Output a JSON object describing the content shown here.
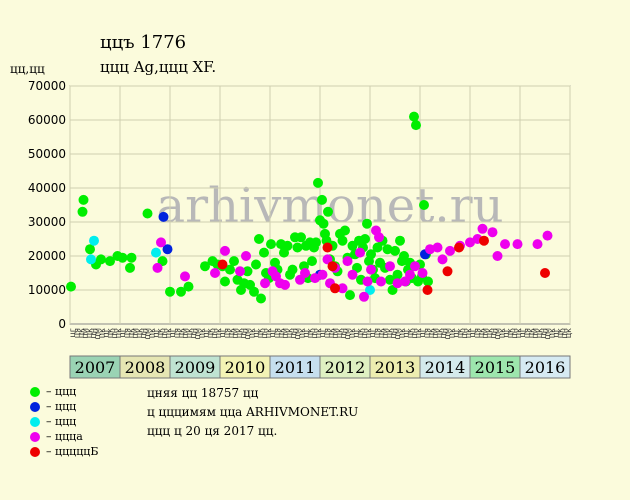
{
  "header": {
    "title": "ццъ 1776",
    "subtitle": "ццц Ag,ццц XF.",
    "ylabel": "цц,цц"
  },
  "watermark": "arhivmonet.ru",
  "notes": [
    "цняя цц 18757 цц",
    "ц цццимям цца ARHIVMONET.RU",
    "ццц ц 20 ця 2017 цц."
  ],
  "legend": [
    {
      "label": "– ццц",
      "color": "#00ee00"
    },
    {
      "label": "– ццц",
      "color": "#0022dd"
    },
    {
      "label": "– ццц",
      "color": "#00eeee"
    },
    {
      "label": "– ццца",
      "color": "#ee00ee"
    },
    {
      "label": "– цццццБ",
      "color": "#ee0000"
    }
  ],
  "chart_data": {
    "type": "scatter",
    "ylim": [
      0,
      70000
    ],
    "yticks": [
      0,
      10000,
      20000,
      30000,
      40000,
      50000,
      60000,
      70000
    ],
    "xlim": [
      2007,
      2017
    ],
    "years": [
      {
        "label": "2007",
        "color": "#9ad3b4"
      },
      {
        "label": "2008",
        "color": "#e6e6b3"
      },
      {
        "label": "2009",
        "color": "#bfe3d2"
      },
      {
        "label": "2010",
        "color": "#f3f3b5"
      },
      {
        "label": "2011",
        "color": "#c6dfee"
      },
      {
        "label": "2012",
        "color": "#dff0c2"
      },
      {
        "label": "2013",
        "color": "#ededb0"
      },
      {
        "label": "2014",
        "color": "#d4eaec"
      },
      {
        "label": "2015",
        "color": "#9de6ad"
      },
      {
        "label": "2016",
        "color": "#d6eaf2"
      }
    ],
    "month_ticks": [
      "цг",
      "ця",
      "цк",
      "ци",
      "цк",
      "цн",
      "цм",
      "цк",
      "цг",
      "цк",
      "цн",
      "цк"
    ],
    "series": [
      {
        "name": "– ццц",
        "color": "#00ee00",
        "points": [
          [
            2007.02,
            11000
          ],
          [
            2007.25,
            33000
          ],
          [
            2007.27,
            36500
          ],
          [
            2007.4,
            22000
          ],
          [
            2007.52,
            17500
          ],
          [
            2007.62,
            19000
          ],
          [
            2007.8,
            18500
          ],
          [
            2007.95,
            20000
          ],
          [
            2008.05,
            19500
          ],
          [
            2008.2,
            16500
          ],
          [
            2008.23,
            19500
          ],
          [
            2008.55,
            32500
          ],
          [
            2008.85,
            18500
          ],
          [
            2009.0,
            9500
          ],
          [
            2009.22,
            9500
          ],
          [
            2009.37,
            11000
          ],
          [
            2009.7,
            17000
          ],
          [
            2009.85,
            18500
          ],
          [
            2009.95,
            17500
          ],
          [
            2010.05,
            17000
          ],
          [
            2010.1,
            12500
          ],
          [
            2010.2,
            16000
          ],
          [
            2010.28,
            18500
          ],
          [
            2010.35,
            13000
          ],
          [
            2010.42,
            10000
          ],
          [
            2010.48,
            12000
          ],
          [
            2010.55,
            15500
          ],
          [
            2010.6,
            11500
          ],
          [
            2010.68,
            9500
          ],
          [
            2010.72,
            17500
          ],
          [
            2010.78,
            25000
          ],
          [
            2010.82,
            7500
          ],
          [
            2010.88,
            21000
          ],
          [
            2010.92,
            15000
          ],
          [
            2010.98,
            13500
          ],
          [
            2011.02,
            23500
          ],
          [
            2011.1,
            18000
          ],
          [
            2011.15,
            16000
          ],
          [
            2011.22,
            23500
          ],
          [
            2011.28,
            21000
          ],
          [
            2011.35,
            23000
          ],
          [
            2011.4,
            14500
          ],
          [
            2011.45,
            16000
          ],
          [
            2011.5,
            25500
          ],
          [
            2011.55,
            22500
          ],
          [
            2011.62,
            25500
          ],
          [
            2011.68,
            17000
          ],
          [
            2011.72,
            23000
          ],
          [
            2011.76,
            13500
          ],
          [
            2011.8,
            24000
          ],
          [
            2011.84,
            18500
          ],
          [
            2011.88,
            22500
          ],
          [
            2011.92,
            24000
          ],
          [
            2011.96,
            41500
          ],
          [
            2012.0,
            30500
          ],
          [
            2012.04,
            36500
          ],
          [
            2012.07,
            29500
          ],
          [
            2012.1,
            26500
          ],
          [
            2012.13,
            24500
          ],
          [
            2012.16,
            33000
          ],
          [
            2012.2,
            19000
          ],
          [
            2012.25,
            23000
          ],
          [
            2012.3,
            17000
          ],
          [
            2012.35,
            15500
          ],
          [
            2012.4,
            26500
          ],
          [
            2012.45,
            24500
          ],
          [
            2012.5,
            27500
          ],
          [
            2012.55,
            19500
          ],
          [
            2012.6,
            8500
          ],
          [
            2012.65,
            23000
          ],
          [
            2012.7,
            20500
          ],
          [
            2012.74,
            16500
          ],
          [
            2012.78,
            24500
          ],
          [
            2012.82,
            13000
          ],
          [
            2012.86,
            22500
          ],
          [
            2012.9,
            25000
          ],
          [
            2012.94,
            29500
          ],
          [
            2012.98,
            18500
          ],
          [
            2013.02,
            20500
          ],
          [
            2013.06,
            16000
          ],
          [
            2013.1,
            13500
          ],
          [
            2013.15,
            22500
          ],
          [
            2013.2,
            18000
          ],
          [
            2013.25,
            24500
          ],
          [
            2013.3,
            16500
          ],
          [
            2013.35,
            22000
          ],
          [
            2013.4,
            13000
          ],
          [
            2013.45,
            10000
          ],
          [
            2013.5,
            21500
          ],
          [
            2013.55,
            14500
          ],
          [
            2013.6,
            24500
          ],
          [
            2013.64,
            18500
          ],
          [
            2013.68,
            20000
          ],
          [
            2013.72,
            12500
          ],
          [
            2013.76,
            16000
          ],
          [
            2013.8,
            18000
          ],
          [
            2013.84,
            13500
          ],
          [
            2013.88,
            61000
          ],
          [
            2013.92,
            58500
          ],
          [
            2013.96,
            12500
          ],
          [
            2014.0,
            17500
          ],
          [
            2014.04,
            14000
          ],
          [
            2014.08,
            35000
          ],
          [
            2014.12,
            20500
          ],
          [
            2014.16,
            12500
          ]
        ]
      },
      {
        "name": "– ццц",
        "color": "#0022dd",
        "points": [
          [
            2008.87,
            31500
          ],
          [
            2008.95,
            22000
          ],
          [
            2012.0,
            14500
          ],
          [
            2014.1,
            20500
          ]
        ]
      },
      {
        "name": "– ццц",
        "color": "#00eeee",
        "points": [
          [
            2007.42,
            19000
          ],
          [
            2007.48,
            24500
          ],
          [
            2008.72,
            21000
          ],
          [
            2013.0,
            10000
          ]
        ]
      },
      {
        "name": "– ццца",
        "color": "#ee00ee",
        "points": [
          [
            2008.75,
            16500
          ],
          [
            2008.82,
            24000
          ],
          [
            2009.3,
            14000
          ],
          [
            2009.9,
            15000
          ],
          [
            2010.1,
            21500
          ],
          [
            2010.4,
            15500
          ],
          [
            2010.52,
            20000
          ],
          [
            2010.9,
            12000
          ],
          [
            2011.05,
            15500
          ],
          [
            2011.12,
            14000
          ],
          [
            2011.2,
            12000
          ],
          [
            2011.3,
            11500
          ],
          [
            2011.6,
            13000
          ],
          [
            2011.7,
            15000
          ],
          [
            2011.9,
            13500
          ],
          [
            2012.05,
            14500
          ],
          [
            2012.15,
            19000
          ],
          [
            2012.2,
            12000
          ],
          [
            2012.3,
            16500
          ],
          [
            2012.45,
            10500
          ],
          [
            2012.55,
            18500
          ],
          [
            2012.65,
            14500
          ],
          [
            2012.8,
            21000
          ],
          [
            2012.88,
            8000
          ],
          [
            2012.95,
            12500
          ],
          [
            2013.02,
            16000
          ],
          [
            2013.12,
            27500
          ],
          [
            2013.18,
            25500
          ],
          [
            2013.22,
            12500
          ],
          [
            2013.4,
            17000
          ],
          [
            2013.55,
            12000
          ],
          [
            2013.7,
            12500
          ],
          [
            2013.8,
            14500
          ],
          [
            2013.9,
            17000
          ],
          [
            2014.05,
            15000
          ],
          [
            2014.2,
            22000
          ],
          [
            2014.35,
            22500
          ],
          [
            2014.45,
            19000
          ],
          [
            2014.6,
            21500
          ],
          [
            2014.8,
            23000
          ],
          [
            2015.0,
            24000
          ],
          [
            2015.15,
            25000
          ],
          [
            2015.25,
            28000
          ],
          [
            2015.45,
            27000
          ],
          [
            2015.55,
            20000
          ],
          [
            2015.7,
            23500
          ],
          [
            2015.95,
            23500
          ],
          [
            2016.35,
            23500
          ],
          [
            2016.55,
            26000
          ]
        ]
      },
      {
        "name": "– цццццБ",
        "color": "#ee0000",
        "points": [
          [
            2010.05,
            17500
          ],
          [
            2012.15,
            22500
          ],
          [
            2012.25,
            17000
          ],
          [
            2012.3,
            10500
          ],
          [
            2014.15,
            10000
          ],
          [
            2014.55,
            15500
          ],
          [
            2014.78,
            22500
          ],
          [
            2015.28,
            24500
          ],
          [
            2016.5,
            15000
          ]
        ]
      }
    ]
  }
}
